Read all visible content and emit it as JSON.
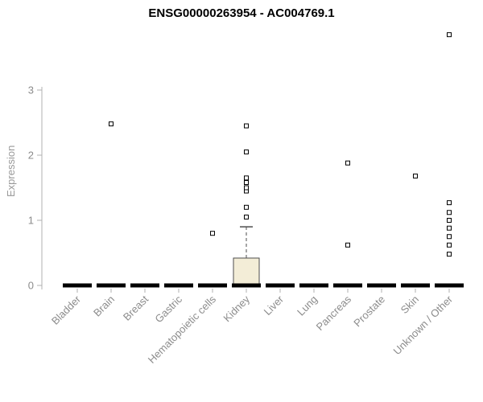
{
  "chart_data": {
    "type": "box",
    "title": "ENSG00000263954 - AC004769.1",
    "ylabel": "Expression",
    "yticks": [
      0,
      1,
      2,
      3
    ],
    "ylim": [
      0,
      4
    ],
    "grid": false,
    "legend": "none",
    "categories": [
      "Bladder",
      "Brain",
      "Breast",
      "Gastric",
      "Hematopoietic cells",
      "Kidney",
      "Liver",
      "Lung",
      "Pancreas",
      "Prostate",
      "Skin",
      "Unknown / Other"
    ],
    "boxes": [
      {
        "category": "Bladder",
        "q1": 0,
        "median": 0,
        "q3": 0,
        "whisker_low": 0,
        "whisker_high": 0,
        "outliers": []
      },
      {
        "category": "Brain",
        "q1": 0,
        "median": 0,
        "q3": 0,
        "whisker_low": 0,
        "whisker_high": 0,
        "outliers": [
          2.48
        ]
      },
      {
        "category": "Breast",
        "q1": 0,
        "median": 0,
        "q3": 0,
        "whisker_low": 0,
        "whisker_high": 0,
        "outliers": []
      },
      {
        "category": "Gastric",
        "q1": 0,
        "median": 0,
        "q3": 0,
        "whisker_low": 0,
        "whisker_high": 0,
        "outliers": []
      },
      {
        "category": "Hematopoietic cells",
        "q1": 0,
        "median": 0,
        "q3": 0,
        "whisker_low": 0,
        "whisker_high": 0,
        "outliers": [
          0.8
        ]
      },
      {
        "category": "Kidney",
        "q1": 0,
        "median": 0,
        "q3": 0.42,
        "whisker_low": 0,
        "whisker_high": 0.9,
        "outliers": [
          1.05,
          1.2,
          1.45,
          1.5,
          1.58,
          1.65,
          2.05,
          2.45
        ]
      },
      {
        "category": "Liver",
        "q1": 0,
        "median": 0,
        "q3": 0,
        "whisker_low": 0,
        "whisker_high": 0,
        "outliers": []
      },
      {
        "category": "Lung",
        "q1": 0,
        "median": 0,
        "q3": 0,
        "whisker_low": 0,
        "whisker_high": 0,
        "outliers": []
      },
      {
        "category": "Pancreas",
        "q1": 0,
        "median": 0,
        "q3": 0,
        "whisker_low": 0,
        "whisker_high": 0,
        "outliers": [
          0.62,
          1.88
        ]
      },
      {
        "category": "Prostate",
        "q1": 0,
        "median": 0,
        "q3": 0,
        "whisker_low": 0,
        "whisker_high": 0,
        "outliers": []
      },
      {
        "category": "Skin",
        "q1": 0,
        "median": 0,
        "q3": 0,
        "whisker_low": 0,
        "whisker_high": 0,
        "outliers": [
          1.68
        ]
      },
      {
        "category": "Unknown / Other",
        "q1": 0,
        "median": 0,
        "q3": 0,
        "whisker_low": 0,
        "whisker_high": 0,
        "outliers": [
          0.48,
          0.62,
          0.75,
          0.88,
          1.0,
          1.12,
          1.27,
          3.85
        ]
      }
    ],
    "colors": {
      "box_fill": "#f3edd7",
      "box_stroke": "#4d4d4d",
      "median_color": "#000000",
      "outlier_fill": "#ffffff",
      "outlier_stroke": "#000000",
      "axis_color": "#b0b0b0",
      "tick_label_color": "#8c8c8c"
    }
  }
}
